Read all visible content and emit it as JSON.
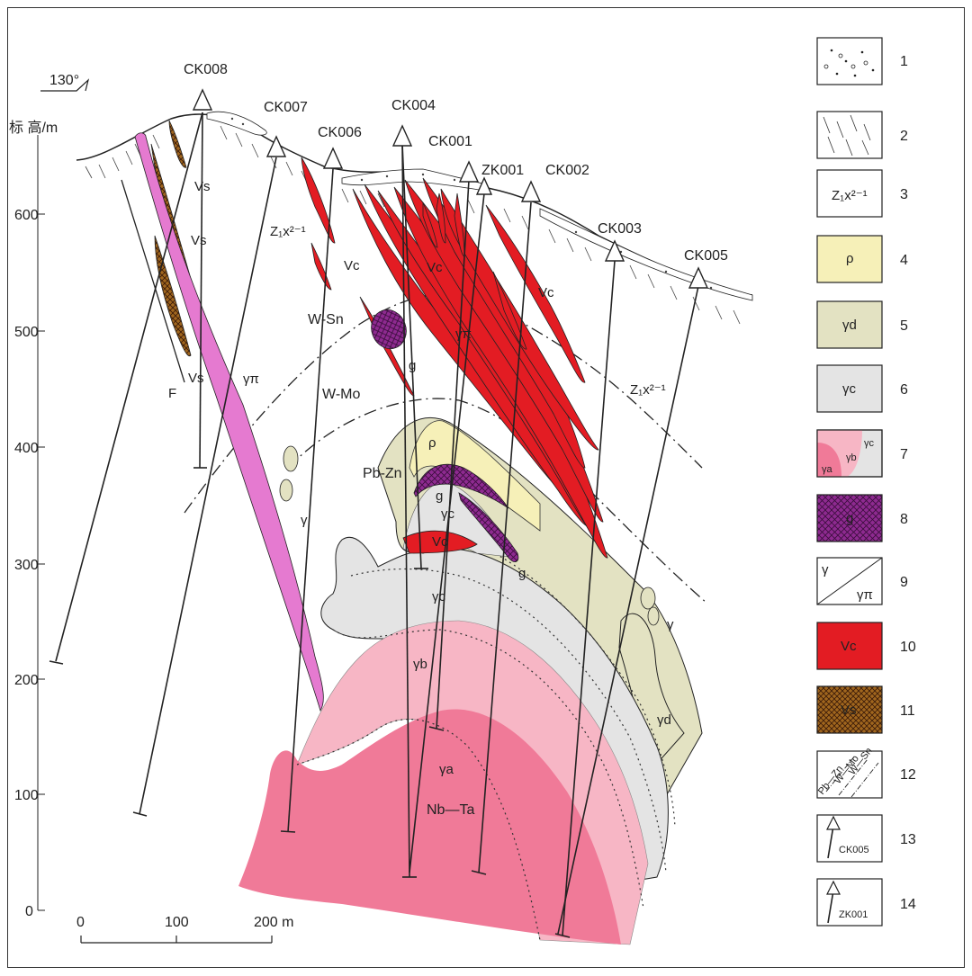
{
  "compass": "130°",
  "ylabel": "标 高/m",
  "y_ticks": [
    "600",
    "500",
    "400",
    "300",
    "200",
    "100",
    "0"
  ],
  "scale": {
    "ticks": [
      "0",
      "100",
      "200 m"
    ]
  },
  "boreholes": [
    "CK008",
    "CK007",
    "CK006",
    "CK004",
    "CK001",
    "ZK001",
    "CK002",
    "CK003",
    "CK005"
  ],
  "zones": {
    "wsn": "W-Sn",
    "wmo": "W-Mo",
    "pbzn": "Pb-Zn",
    "nbta": "Nb—Ta"
  },
  "labels": {
    "vs": "Vs",
    "vc": "Vc",
    "f": "F",
    "gpi": "γπ",
    "g": "g",
    "gamma": "γ",
    "rho": "ρ",
    "gd": "γd",
    "gc": "γc",
    "gb": "γb",
    "ga": "γa",
    "vc_small": "Vc",
    "z1x": "Z₁x²⁻¹"
  },
  "legend": [
    {
      "num": "1"
    },
    {
      "num": "2"
    },
    {
      "num": "3",
      "text": "Z₁x²⁻¹"
    },
    {
      "num": "4",
      "text": "ρ"
    },
    {
      "num": "5",
      "text": "γd"
    },
    {
      "num": "6",
      "text": "γc"
    },
    {
      "num": "7",
      "text_a": "γa",
      "text_b": "γb",
      "text_c": "γc"
    },
    {
      "num": "8",
      "text": "g"
    },
    {
      "num": "9",
      "text_a": "γ",
      "text_b": "γπ"
    },
    {
      "num": "10",
      "text": "Vc"
    },
    {
      "num": "11",
      "text": "Vs"
    },
    {
      "num": "12",
      "text_a": "W—Sn",
      "text_b": "W—Mo",
      "text_c": "Pb—Zn"
    },
    {
      "num": "13",
      "text": "CK005"
    },
    {
      "num": "14",
      "text": "ZK001"
    }
  ],
  "colors": {
    "vein_red": "#e31c23",
    "vs_brown": "#a0661e",
    "gpi_pink": "#e57ad0",
    "g_purple": "#8e2a90",
    "rho_yellow": "#f6f0b8",
    "gd_olive": "#e3e2c2",
    "gc_grey": "#e4e4e4",
    "gb_pink": "#f7b6c5",
    "ga_pink": "#f07a98"
  }
}
